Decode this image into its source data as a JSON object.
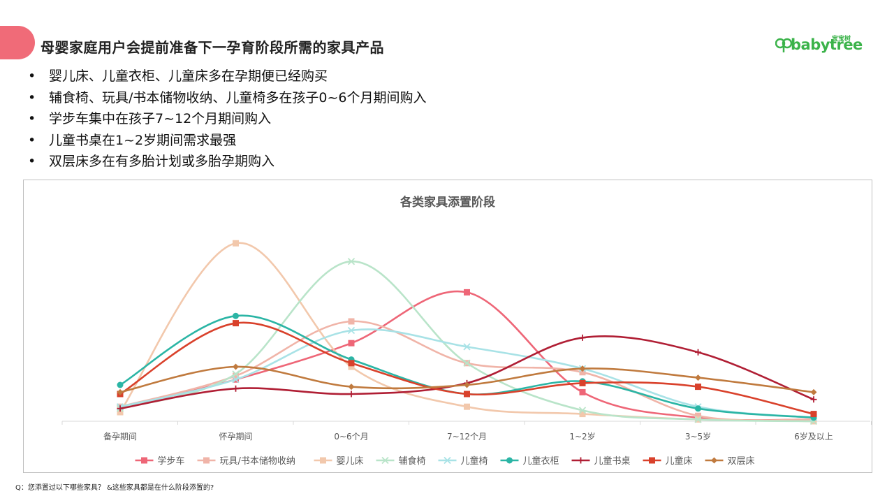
{
  "header": {
    "title": "母婴家庭用户会提前准备下一孕育阶段所需的家具产品",
    "logo_sub": "宝宝树",
    "logo_word": "babytree",
    "accent_color": "#f06b78",
    "logo_color": "#3bb34a"
  },
  "bullets": [
    "婴儿床、儿童衣柜、儿童床多在孕期便已经购买",
    "辅食椅、玩具/书本储物收纳、儿童椅多在孩子0~6个月期间购入",
    "学步车集中在孩子7~12个月期间购入",
    "儿童书桌在1~2岁期间需求最强",
    "双层床多在有多胎计划或多胎孕期购入"
  ],
  "bullet_symbol": "•",
  "footnote": "Q：您添置过以下哪些家具？ &这些家具都是在什么阶段添置的?",
  "chart_data": {
    "type": "line",
    "title": "各类家具添置阶段",
    "categories": [
      "备孕期间",
      "怀孕期间",
      "0~6个月",
      "7~12个月",
      "1~2岁",
      "3~5岁",
      "6岁及以上"
    ],
    "ylim": [
      0,
      100
    ],
    "grid": false,
    "legend_position": "bottom",
    "smooth": true,
    "series": [
      {
        "name": "学步车",
        "color": "#ee6677",
        "marker": "square",
        "values": [
          7,
          23,
          43,
          71,
          16,
          2,
          1
        ]
      },
      {
        "name": "玩具/书本储物收纳",
        "color": "#f0b4a8",
        "marker": "square",
        "values": [
          8,
          25,
          55,
          32,
          27,
          3,
          1
        ]
      },
      {
        "name": "婴儿床",
        "color": "#f2c8ac",
        "marker": "square",
        "values": [
          5,
          98,
          30,
          8,
          4,
          1,
          0
        ]
      },
      {
        "name": "辅食椅",
        "color": "#b9e4c9",
        "marker": "x",
        "values": [
          7,
          26,
          88,
          32,
          6,
          1,
          0
        ]
      },
      {
        "name": "儿童椅",
        "color": "#a8e2e6",
        "marker": "x",
        "values": [
          8,
          23,
          50,
          41,
          29,
          8,
          2
        ]
      },
      {
        "name": "儿童衣柜",
        "color": "#2bb5a5",
        "marker": "circle",
        "values": [
          20,
          58,
          34,
          15,
          22,
          7,
          2
        ]
      },
      {
        "name": "儿童书桌",
        "color": "#b01e34",
        "marker": "plus",
        "values": [
          7,
          18,
          15,
          21,
          46,
          38,
          12
        ]
      },
      {
        "name": "儿童床",
        "color": "#d9412b",
        "marker": "square",
        "values": [
          15,
          54,
          32,
          15,
          21,
          19,
          4
        ]
      },
      {
        "name": "双层床",
        "color": "#c07a3e",
        "marker": "diamond",
        "values": [
          16,
          30,
          19,
          20,
          29,
          24,
          16
        ]
      }
    ]
  }
}
